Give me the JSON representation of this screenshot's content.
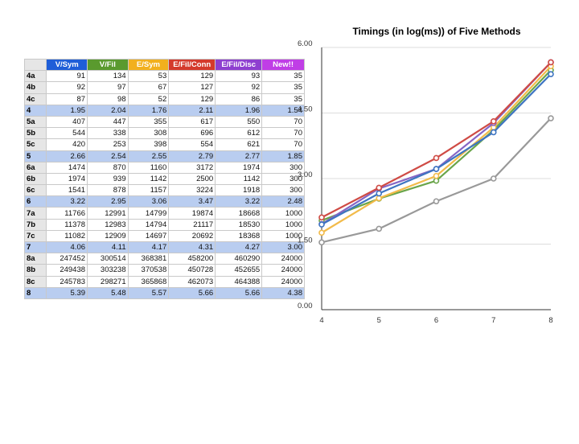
{
  "table": {
    "headers": [
      "V/Sym",
      "V/Fil",
      "E/Sym",
      "E/Fil/Conn",
      "E/Fil/Disc",
      "New!!"
    ],
    "header_colors": [
      "#1f5ed8",
      "#5a9a2e",
      "#f2b01e",
      "#d43a2c",
      "#8e3fd0",
      "#c03ee6"
    ],
    "rows": [
      {
        "label": "4a",
        "values": [
          "91",
          "134",
          "53",
          "129",
          "93",
          "35"
        ],
        "summary": false
      },
      {
        "label": "4b",
        "values": [
          "92",
          "97",
          "67",
          "127",
          "92",
          "35"
        ],
        "summary": false
      },
      {
        "label": "4c",
        "values": [
          "87",
          "98",
          "52",
          "129",
          "86",
          "35"
        ],
        "summary": false
      },
      {
        "label": "4",
        "values": [
          "1.95",
          "2.04",
          "1.76",
          "2.11",
          "1.96",
          "1.54"
        ],
        "summary": true
      },
      {
        "label": "5a",
        "values": [
          "407",
          "447",
          "355",
          "617",
          "550",
          "70"
        ],
        "summary": false
      },
      {
        "label": "5b",
        "values": [
          "544",
          "338",
          "308",
          "696",
          "612",
          "70"
        ],
        "summary": false
      },
      {
        "label": "5c",
        "values": [
          "420",
          "253",
          "398",
          "554",
          "621",
          "70"
        ],
        "summary": false
      },
      {
        "label": "5",
        "values": [
          "2.66",
          "2.54",
          "2.55",
          "2.79",
          "2.77",
          "1.85"
        ],
        "summary": true
      },
      {
        "label": "6a",
        "values": [
          "1474",
          "870",
          "1160",
          "3172",
          "1974",
          "300"
        ],
        "summary": false
      },
      {
        "label": "6b",
        "values": [
          "1974",
          "939",
          "1142",
          "2500",
          "1142",
          "300"
        ],
        "summary": false
      },
      {
        "label": "6c",
        "values": [
          "1541",
          "878",
          "1157",
          "3224",
          "1918",
          "300"
        ],
        "summary": false
      },
      {
        "label": "6",
        "values": [
          "3.22",
          "2.95",
          "3.06",
          "3.47",
          "3.22",
          "2.48"
        ],
        "summary": true
      },
      {
        "label": "7a",
        "values": [
          "11766",
          "12991",
          "14799",
          "19874",
          "18668",
          "1000"
        ],
        "summary": false
      },
      {
        "label": "7b",
        "values": [
          "11378",
          "12983",
          "14794",
          "21117",
          "18530",
          "1000"
        ],
        "summary": false
      },
      {
        "label": "7c",
        "values": [
          "11082",
          "12909",
          "14697",
          "20692",
          "18368",
          "1000"
        ],
        "summary": false
      },
      {
        "label": "7",
        "values": [
          "4.06",
          "4.11",
          "4.17",
          "4.31",
          "4.27",
          "3.00"
        ],
        "summary": true
      },
      {
        "label": "8a",
        "values": [
          "247452",
          "300514",
          "368381",
          "458200",
          "460290",
          "24000"
        ],
        "summary": false
      },
      {
        "label": "8b",
        "values": [
          "249438",
          "303238",
          "370538",
          "450728",
          "452655",
          "24000"
        ],
        "summary": false
      },
      {
        "label": "8c",
        "values": [
          "245783",
          "298271",
          "365868",
          "462073",
          "464388",
          "24000"
        ],
        "summary": false
      },
      {
        "label": "8",
        "values": [
          "5.39",
          "5.48",
          "5.57",
          "5.66",
          "5.66",
          "4.38"
        ],
        "summary": true
      }
    ]
  },
  "chart_data": {
    "type": "line",
    "title": "Timings (in log(ms)) of Five Methods",
    "xlabel": "",
    "ylabel": "",
    "x": [
      4,
      5,
      6,
      7,
      8
    ],
    "x_tick_labels": [
      "4",
      "5",
      "6",
      "7",
      "8"
    ],
    "ylim": [
      0,
      6
    ],
    "y_ticks": [
      0,
      1.5,
      3,
      4.5,
      6
    ],
    "y_tick_labels": [
      "0.00",
      "1.50",
      "3.00",
      "4.50",
      "6.00"
    ],
    "grid": true,
    "legend": "none",
    "series": [
      {
        "values": [
          1.54,
          1.85,
          2.48,
          3.0,
          4.38
        ],
        "color": "#999999"
      },
      {
        "values": [
          2.04,
          2.54,
          2.95,
          4.11,
          5.48
        ],
        "color": "#6aa54a"
      },
      {
        "values": [
          1.76,
          2.55,
          3.06,
          4.17,
          5.57
        ],
        "color": "#f2bb4a"
      },
      {
        "values": [
          1.96,
          2.77,
          3.22,
          4.27,
          5.66
        ],
        "color": "#8666c4"
      },
      {
        "values": [
          1.95,
          2.66,
          3.22,
          4.06,
          5.39
        ],
        "color": "#3d74c1"
      },
      {
        "values": [
          2.11,
          2.79,
          3.47,
          4.31,
          5.66
        ],
        "color": "#cf4b45"
      }
    ]
  }
}
